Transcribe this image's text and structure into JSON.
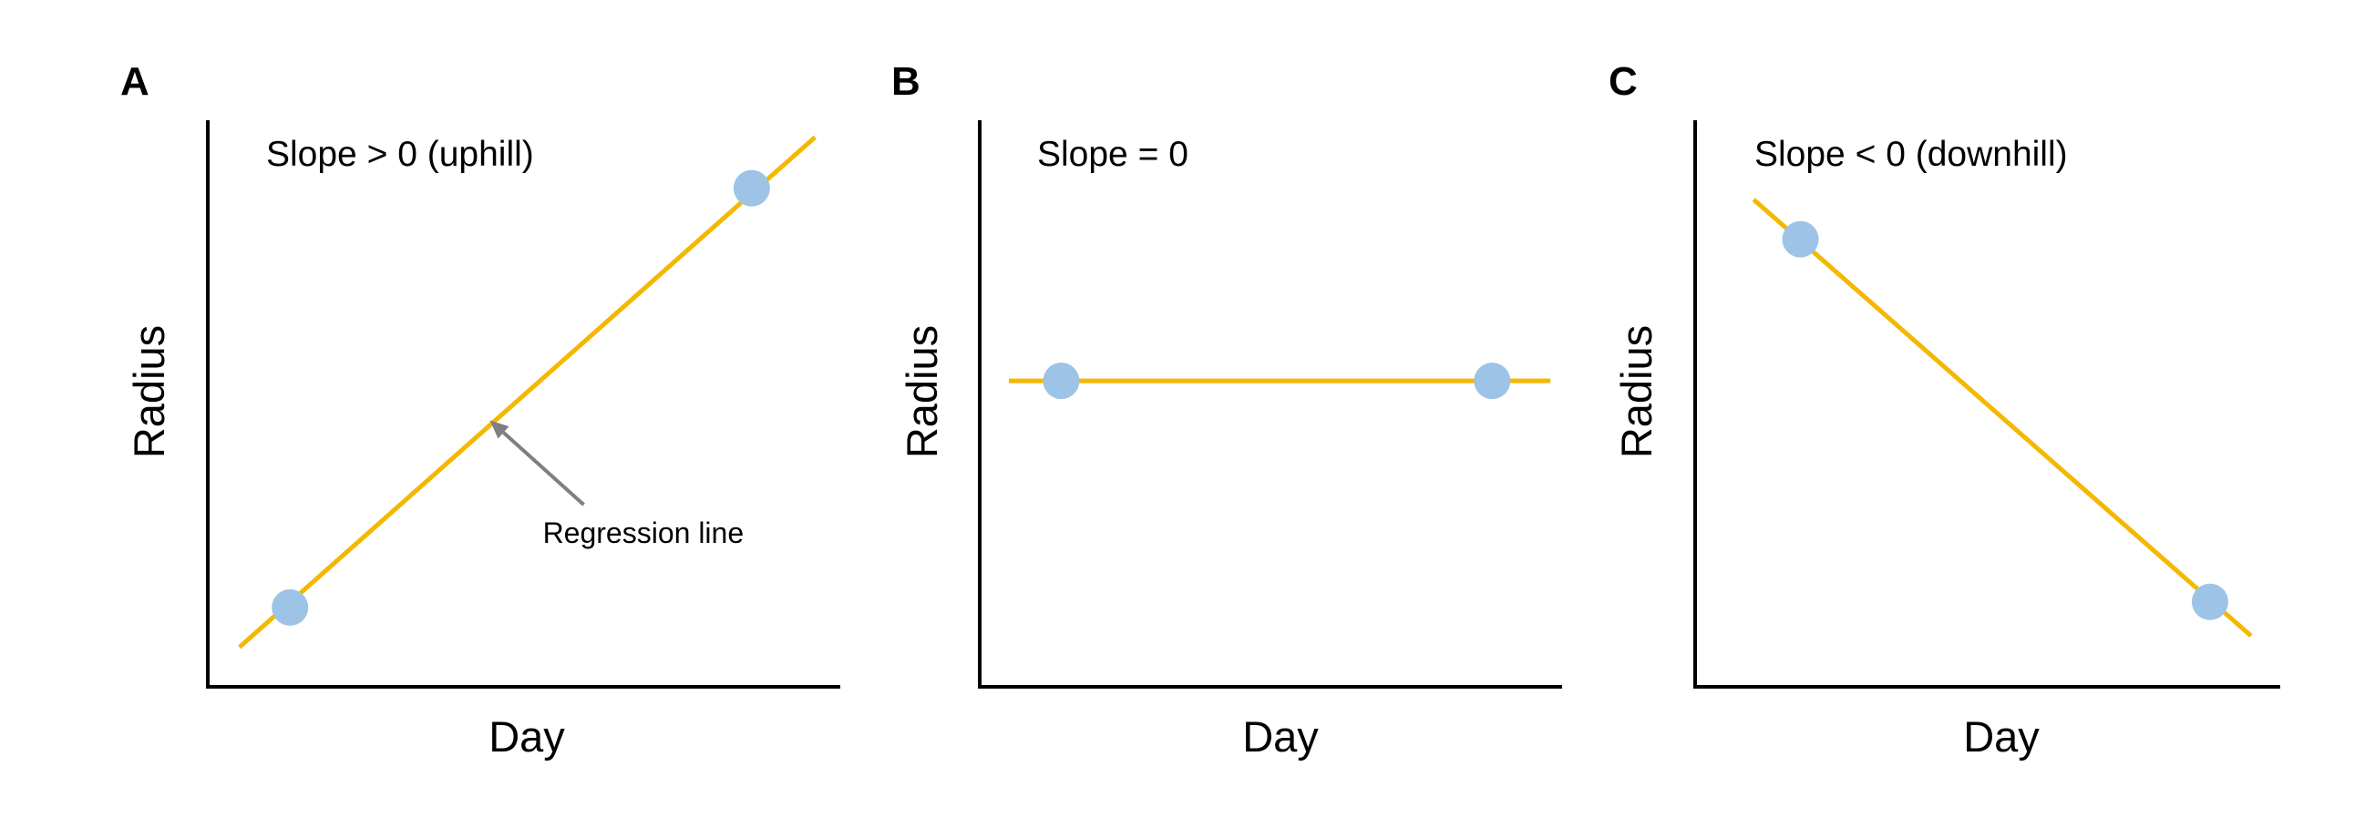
{
  "colors": {
    "line": "#F4B800",
    "point": "#9DC3E6",
    "axis": "#000000",
    "arrow": "#7F7F7F"
  },
  "chart_data": [
    {
      "type": "line",
      "panel": "A",
      "slope_label": "Slope > 0 (uphill)",
      "xlabel": "Day",
      "ylabel": "Radius",
      "xlim": [
        0,
        100
      ],
      "ylim": [
        0,
        100
      ],
      "regression_line": [
        [
          5,
          7
        ],
        [
          96,
          97
        ]
      ],
      "points": [
        [
          13,
          14
        ],
        [
          86,
          88
        ]
      ],
      "annotation": "Regression line",
      "grid": false
    },
    {
      "type": "line",
      "panel": "B",
      "slope_label": "Slope = 0",
      "xlabel": "Day",
      "ylabel": "Radius",
      "xlim": [
        0,
        100
      ],
      "ylim": [
        0,
        100
      ],
      "regression_line": [
        [
          5,
          54
        ],
        [
          98,
          54
        ]
      ],
      "points": [
        [
          14,
          54
        ],
        [
          88,
          54
        ]
      ],
      "grid": false
    },
    {
      "type": "line",
      "panel": "C",
      "slope_label": "Slope < 0 (downhill)",
      "xlabel": "Day",
      "ylabel": "Radius",
      "xlim": [
        0,
        100
      ],
      "ylim": [
        0,
        100
      ],
      "regression_line": [
        [
          10,
          86
        ],
        [
          95,
          9
        ]
      ],
      "points": [
        [
          18,
          79
        ],
        [
          88,
          15
        ]
      ],
      "grid": false
    }
  ]
}
